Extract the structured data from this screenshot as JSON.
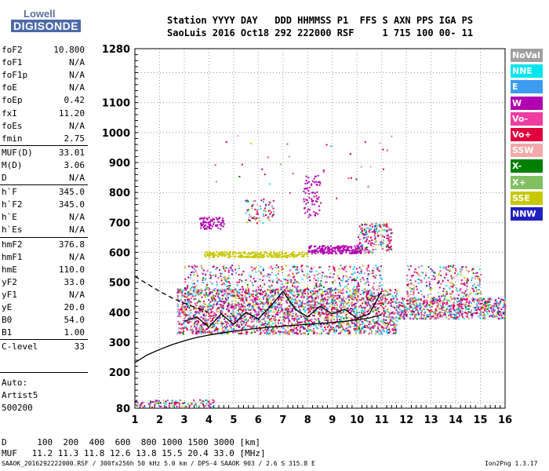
{
  "logo": {
    "line1": "Lowell",
    "line2": "DIGISONDE"
  },
  "header": {
    "line1": "Station YYYY DAY   DDD HHMMSS P1  FFS S AXN PPS IGA PS",
    "line2": "SaoLuis 2016 Oct18 292 222000 RSF     1 715 100 00- 11"
  },
  "params": [
    {
      "name": "foF2",
      "value": "10.800"
    },
    {
      "name": "foF1",
      "value": "N/A"
    },
    {
      "name": "foF1p",
      "value": "N/A"
    },
    {
      "name": "foE",
      "value": "N/A"
    },
    {
      "name": "foEp",
      "value": "0.42"
    },
    {
      "name": "fxI",
      "value": "11.20"
    },
    {
      "name": "foEs",
      "value": "N/A"
    },
    {
      "name": "fmin",
      "value": "2.75"
    },
    {
      "name": "MUF(D)",
      "value": "33.01"
    },
    {
      "name": "M(D)",
      "value": "3.06"
    },
    {
      "name": "D",
      "value": "N/A"
    },
    {
      "name": "h`F",
      "value": "345.0"
    },
    {
      "name": "h`F2",
      "value": "345.0"
    },
    {
      "name": "h`E",
      "value": "N/A"
    },
    {
      "name": "h`Es",
      "value": "N/A"
    },
    {
      "name": "hmF2",
      "value": "376.8"
    },
    {
      "name": "hmF1",
      "value": "N/A"
    },
    {
      "name": "hmE",
      "value": "110.0"
    },
    {
      "name": "yF2",
      "value": "33.0"
    },
    {
      "name": "yF1",
      "value": "N/A"
    },
    {
      "name": "yE",
      "value": "20.0"
    },
    {
      "name": "B0",
      "value": "54.0"
    },
    {
      "name": "B1",
      "value": "1.00"
    },
    {
      "name": "C-level",
      "value": "33"
    }
  ],
  "auto": {
    "line1": "Auto:",
    "line2": "Artist5",
    "line3": "500200"
  },
  "legend": [
    {
      "label": "NoVal",
      "color": "#a0a0a0"
    },
    {
      "label": "NNE",
      "color": "#00e5ee"
    },
    {
      "label": "E",
      "color": "#3c9cf0"
    },
    {
      "label": "W",
      "color": "#b000b0"
    },
    {
      "label": "Vo-",
      "color": "#f03ca0"
    },
    {
      "label": "Vo+",
      "color": "#e0003c"
    },
    {
      "label": "SSW",
      "color": "#f4a8a8"
    },
    {
      "label": "X-",
      "color": "#008000"
    },
    {
      "label": "X+",
      "color": "#80c060"
    },
    {
      "label": "SSE",
      "color": "#c8c800"
    },
    {
      "label": "NNW",
      "color": "#2020c0"
    }
  ],
  "bottom": {
    "d_label": "D",
    "d_values": "  100  200  400  600  800 1000 1500 3000 [km]",
    "muf_label": "MUF",
    "muf_values": " 11.2 11.3 11.8 12.6 13.8 15.5 20.4 33.0 [MHz]"
  },
  "footer": "SAAOK_2016292222000.RSF / 300fx256h 50 kHz 5.0 km / DPS-4 SAAOK 903 / 2.6 S 315.8 E",
  "version": "Ion2Png 1.3.17",
  "chart_data": {
    "type": "scatter",
    "x_ticks": [
      1,
      2,
      3,
      4,
      5,
      6,
      7,
      8,
      9,
      10,
      11,
      12,
      13,
      14,
      15,
      16
    ],
    "y_ticks": [
      80,
      200,
      300,
      400,
      500,
      600,
      700,
      800,
      900,
      1000,
      1100,
      1280
    ],
    "xlim": [
      1,
      16
    ],
    "ylim": [
      80,
      1280
    ],
    "grid": true,
    "legend_position": "right",
    "traces": [
      {
        "name": "virtual-height",
        "style": "solid",
        "x": [
          1.0,
          1.5,
          2.0,
          2.5,
          3.0,
          3.5,
          4.0,
          4.5,
          5.0,
          5.5,
          6.0,
          6.5,
          7.0,
          7.5,
          8.0,
          8.5,
          9.0,
          9.5,
          10.0,
          10.5,
          11.0
        ],
        "y": [
          232,
          258,
          276,
          292,
          305,
          316,
          324,
          331,
          337,
          342,
          347,
          351,
          354,
          357,
          360,
          363,
          366,
          370,
          375,
          381,
          392
        ]
      },
      {
        "name": "trace-dashed",
        "style": "dashed",
        "x": [
          1.0,
          1.5,
          2.0,
          2.5,
          3.0,
          3.5,
          4.0
        ],
        "y": [
          520,
          495,
          470,
          448,
          430,
          415,
          400
        ]
      },
      {
        "name": "trace-wiggle",
        "style": "solid",
        "x": [
          3.0,
          3.5,
          4.0,
          4.5,
          5.0,
          5.5,
          6.0,
          6.5,
          7.0,
          7.5,
          8.0,
          8.5,
          9.0,
          9.5,
          10.0,
          10.5,
          11.0
        ],
        "y": [
          370,
          385,
          350,
          395,
          360,
          400,
          378,
          420,
          470,
          410,
          385,
          420,
          395,
          410,
          380,
          395,
          470
        ]
      }
    ]
  }
}
